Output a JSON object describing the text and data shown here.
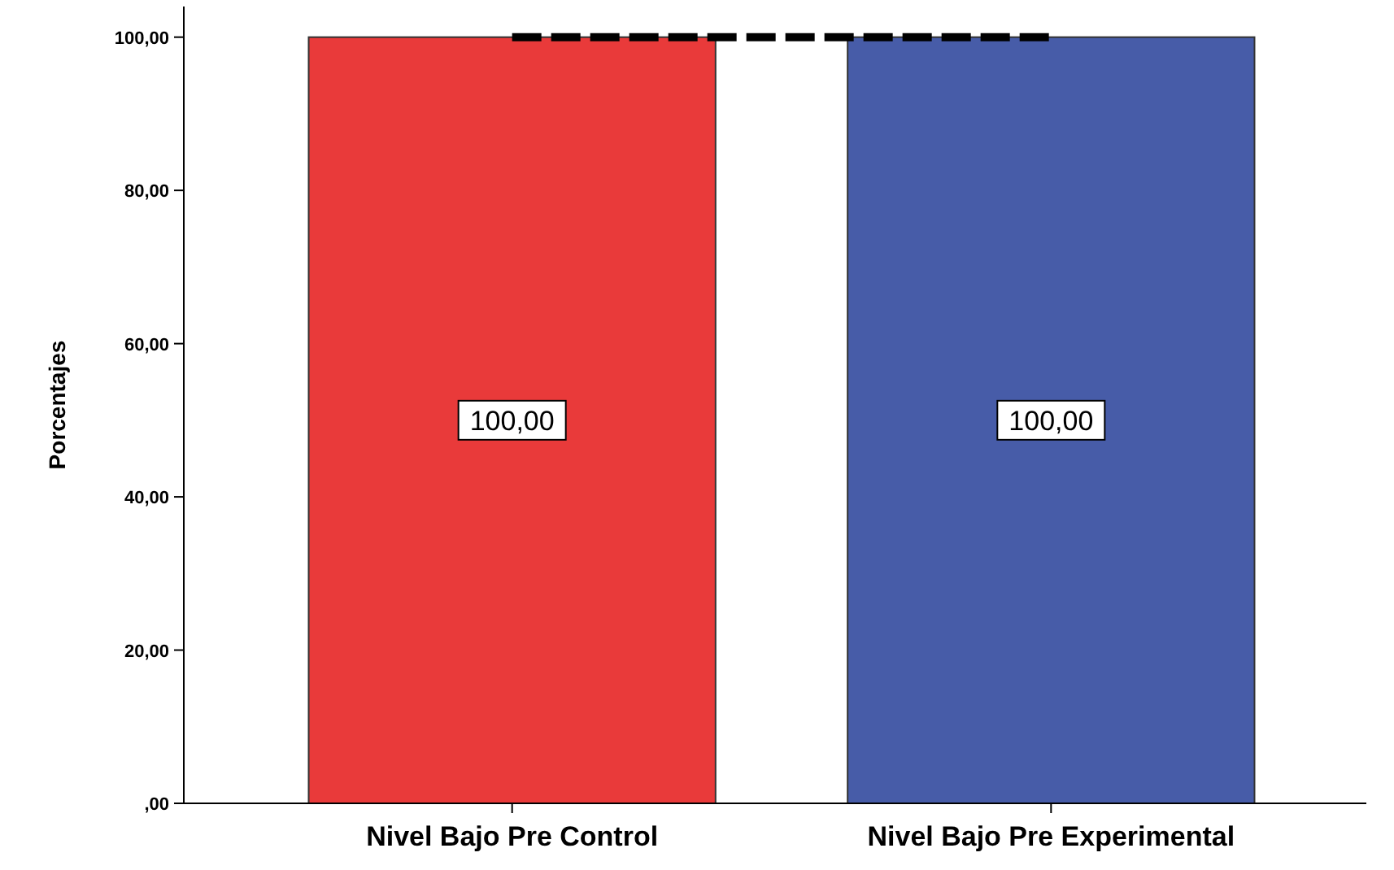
{
  "chart_data": {
    "type": "bar",
    "ylabel": "Porcentajes",
    "categories": [
      "Nivel Bajo Pre Control",
      "Nivel Bajo Pre Experimental"
    ],
    "series": [
      {
        "colors": [
          "#e93a3a",
          "#475ca8"
        ],
        "values": [
          100,
          100
        ],
        "value_labels": [
          "100,00",
          "100,00"
        ]
      },
      {
        "type": "line",
        "color": "#000000",
        "values": [
          100,
          100
        ],
        "line_style": "dashed",
        "marker": "none"
      }
    ],
    "ylim": [
      0,
      104
    ],
    "yticks": [
      {
        "value": 0,
        "label": ",00"
      },
      {
        "value": 20,
        "label": "20,00"
      },
      {
        "value": 40,
        "label": "40,00"
      },
      {
        "value": 60,
        "label": "60,00"
      },
      {
        "value": 80,
        "label": "80,00"
      },
      {
        "value": 100,
        "label": "100,00"
      }
    ],
    "grid": false
  }
}
